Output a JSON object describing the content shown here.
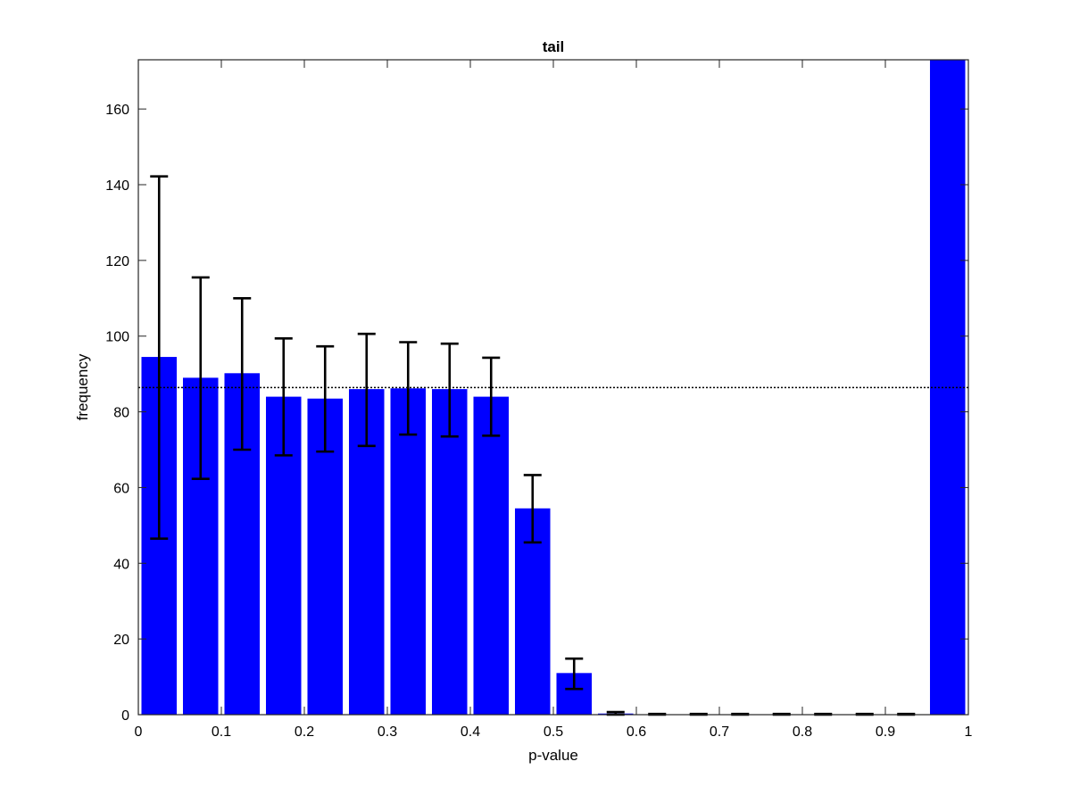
{
  "chart_data": {
    "type": "bar",
    "title": "tail",
    "xlabel": "p-value",
    "ylabel": "frequency",
    "xlim": [
      0,
      1
    ],
    "ylim": [
      0,
      173
    ],
    "xticks": [
      0,
      0.1,
      0.2,
      0.3,
      0.4,
      0.5,
      0.6,
      0.7,
      0.8,
      0.9,
      1
    ],
    "xtick_labels": [
      "0",
      "0.1",
      "0.2",
      "0.3",
      "0.4",
      "0.5",
      "0.6",
      "0.7",
      "0.8",
      "0.9",
      "1"
    ],
    "yticks": [
      0,
      20,
      40,
      60,
      80,
      100,
      120,
      140,
      160
    ],
    "ytick_labels": [
      "0",
      "20",
      "40",
      "60",
      "80",
      "100",
      "120",
      "140",
      "160"
    ],
    "bin_width": 0.05,
    "bar_width_fraction": 0.85,
    "x": [
      0.025,
      0.075,
      0.125,
      0.175,
      0.225,
      0.275,
      0.325,
      0.375,
      0.425,
      0.475,
      0.525,
      0.575,
      0.625,
      0.675,
      0.725,
      0.775,
      0.825,
      0.875,
      0.925,
      0.975
    ],
    "values": [
      94.5,
      89,
      90.2,
      84,
      83.5,
      86,
      86.2,
      86,
      84,
      54.5,
      11,
      0.3,
      0.1,
      0.1,
      0.1,
      0.1,
      0.1,
      0.1,
      0.1,
      173
    ],
    "error_low": [
      46.5,
      62.3,
      70,
      68.5,
      69.5,
      71,
      74,
      73.5,
      73.7,
      45.5,
      6.8,
      0,
      0,
      0,
      0,
      0,
      0,
      0,
      0,
      null
    ],
    "error_high": [
      142.2,
      115.5,
      110,
      99.4,
      97.3,
      100.6,
      98.4,
      98,
      94.3,
      63.3,
      14.8,
      0.7,
      0.2,
      0.2,
      0.2,
      0.2,
      0.2,
      0.2,
      0.2,
      null
    ],
    "reference_line": {
      "y": 86.4,
      "style": "dotted"
    },
    "bar_color": "#0000FF",
    "errorbar_color": "#000000",
    "grid": false,
    "legend": "none"
  }
}
